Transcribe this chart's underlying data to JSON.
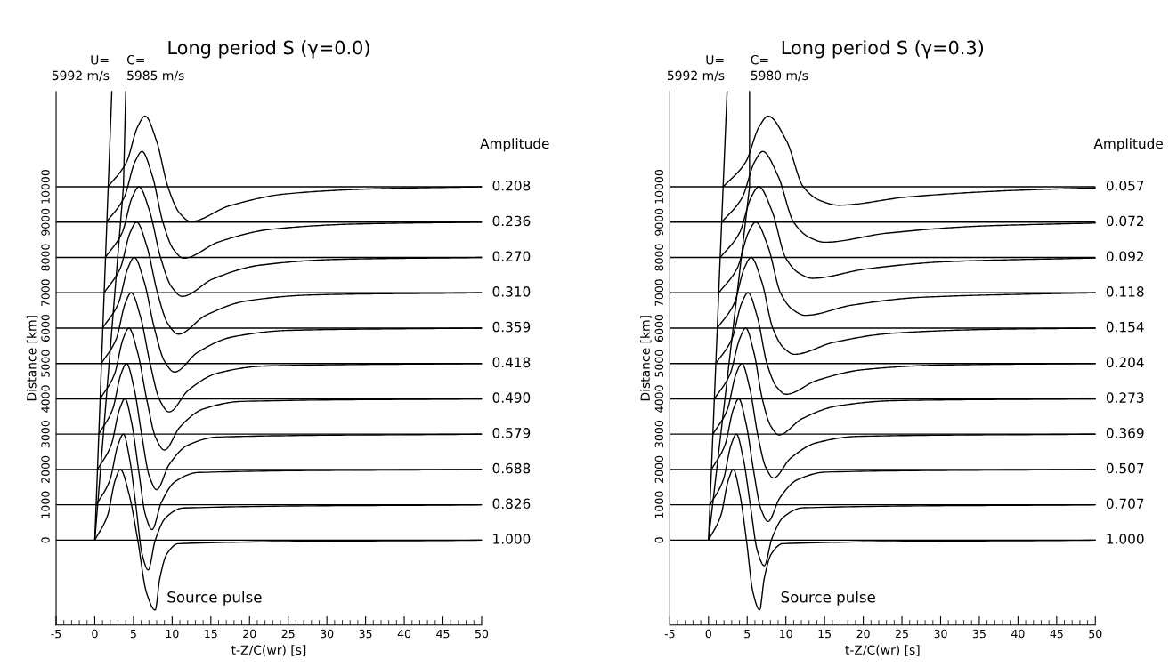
{
  "chart_data": [
    {
      "type": "line",
      "title": "Long period S (γ=0.0)",
      "xlabel": "t-Z/C(wr) [s]",
      "ylabel": "Distance [km]",
      "xlim": [
        -5,
        50
      ],
      "ylim": [
        -2400,
        12700
      ],
      "xticks": [
        -5,
        {
          "value": -4,
          "label": null
        },
        {
          "value": -3,
          "label": null
        },
        {
          "value": -2,
          "label": null
        },
        {
          "value": -1,
          "label": null
        },
        0,
        {
          "value": 1,
          "label": null
        },
        {
          "value": 2,
          "label": null
        },
        {
          "value": 3,
          "label": null
        },
        {
          "value": 4,
          "label": null
        },
        5,
        {
          "value": 6,
          "label": null
        },
        {
          "value": 7,
          "label": null
        },
        {
          "value": 8,
          "label": null
        },
        {
          "value": 9,
          "label": null
        },
        10,
        {
          "value": 11,
          "label": null
        },
        {
          "value": 12,
          "label": null
        },
        {
          "value": 13,
          "label": null
        },
        {
          "value": 14,
          "label": null
        },
        15,
        {
          "value": 16,
          "label": null
        },
        {
          "value": 17,
          "label": null
        },
        {
          "value": 18,
          "label": null
        },
        {
          "value": 19,
          "label": null
        },
        20,
        {
          "value": 21,
          "label": null
        },
        {
          "value": 22,
          "label": null
        },
        {
          "value": 23,
          "label": null
        },
        {
          "value": 24,
          "label": null
        },
        25,
        {
          "value": 26,
          "label": null
        },
        {
          "value": 27,
          "label": null
        },
        {
          "value": 28,
          "label": null
        },
        {
          "value": 29,
          "label": null
        },
        30,
        {
          "value": 31,
          "label": null
        },
        {
          "value": 32,
          "label": null
        },
        {
          "value": 33,
          "label": null
        },
        {
          "value": 34,
          "label": null
        },
        35,
        {
          "value": 36,
          "label": null
        },
        {
          "value": 37,
          "label": null
        },
        {
          "value": 38,
          "label": null
        },
        {
          "value": 39,
          "label": null
        },
        40,
        {
          "value": 41,
          "label": null
        },
        {
          "value": 42,
          "label": null
        },
        {
          "value": 43,
          "label": null
        },
        {
          "value": 44,
          "label": null
        },
        45,
        {
          "value": 46,
          "label": null
        },
        {
          "value": 47,
          "label": null
        },
        {
          "value": 48,
          "label": null
        },
        {
          "value": 49,
          "label": null
        },
        50
      ],
      "yticks": [
        0,
        1000,
        2000,
        3000,
        4000,
        5000,
        6000,
        7000,
        8000,
        9000,
        10000
      ],
      "series": [
        {
          "color": "#000000",
          "x": [
            0,
            1.65,
            2.64,
            3.3,
            4.43,
            5.55,
            6.68,
            7.8,
            8.4,
            9.3,
            10.8,
            50
          ],
          "values": [
            0,
            700,
            1700,
            2000,
            1300,
            0,
            -1481,
            -1975,
            -1086,
            -395,
            -99,
            0
          ]
        },
        {
          "color": "#000000",
          "x": [
            0.2,
            1.95,
            3.0,
            3.7,
            4.5,
            5.3,
            6.1,
            6.9,
            7.8,
            9.15,
            11.4,
            50
          ],
          "values": [
            1000,
            1700,
            2700,
            3000,
            2300,
            1000,
            -380,
            -840,
            -12,
            632,
            908,
            1000
          ]
        },
        {
          "color": "#000000",
          "x": [
            0.35,
            2.13,
            3.19,
            3.9,
            4.78,
            5.65,
            6.53,
            7.4,
            8.6,
            10.4,
            13.4,
            50
          ],
          "values": [
            2000,
            2700,
            3700,
            4000,
            3300,
            2000,
            725,
            300,
            1065,
            1660,
            1915,
            2000
          ]
        },
        {
          "color": "#000000",
          "x": [
            0.5,
            2.3,
            3.38,
            4.1,
            5.08,
            6.05,
            7.03,
            8.0,
            9.6,
            12.0,
            16.0,
            50
          ],
          "values": [
            3000,
            3700,
            4700,
            5000,
            4300,
            3000,
            1822,
            1430,
            2136,
            2686,
            2921,
            3000
          ]
        },
        {
          "color": "#000000",
          "x": [
            0.7,
            2.55,
            3.66,
            4.4,
            5.55,
            6.7,
            7.85,
            9.0,
            11,
            14,
            19,
            50
          ],
          "values": [
            4000,
            4700,
            5700,
            6000,
            5300,
            4000,
            2912,
            2550,
            3202,
            3710,
            3927,
            4000
          ]
        },
        {
          "color": "#000000",
          "x": [
            0.85,
            2.78,
            3.93,
            4.7,
            5.93,
            7.15,
            8.38,
            9.6,
            12.1,
            15.85,
            22.1,
            50
          ],
          "values": [
            5000,
            5700,
            6700,
            7000,
            6300,
            5000,
            3972,
            3630,
            4246,
            4726,
            4931,
            5000
          ]
        },
        {
          "color": "#000000",
          "x": [
            1.0,
            3.05,
            4.28,
            5.1,
            6.4,
            7.7,
            9.0,
            10.3,
            13.3,
            17.8,
            25.3,
            50
          ],
          "values": [
            6000,
            6700,
            7700,
            8000,
            7300,
            6000,
            5070,
            4760,
            5318,
            5752,
            5938,
            6000
          ]
        },
        {
          "color": "#000000",
          "x": [
            1.2,
            3.3,
            4.56,
            5.4,
            6.75,
            8.1,
            9.45,
            10.8,
            14.3,
            19.55,
            28.3,
            50
          ],
          "values": [
            7000,
            7700,
            8700,
            9000,
            8300,
            7000,
            6122,
            5830,
            6356,
            6766,
            6941,
            7000
          ]
        },
        {
          "color": "#000000",
          "x": [
            1.35,
            3.53,
            4.83,
            5.7,
            7.1,
            8.5,
            9.9,
            11.3,
            15.3,
            21.3,
            31.3,
            50
          ],
          "values": [
            8000,
            8700,
            9700,
            10000,
            9300,
            8000,
            7175,
            6900,
            7395,
            7780,
            7945,
            8000
          ]
        },
        {
          "color": "#000000",
          "x": [
            1.5,
            3.8,
            5.18,
            6.1,
            7.45,
            8.8,
            10.15,
            11.5,
            16.0,
            22.75,
            34.0,
            50
          ],
          "values": [
            9000,
            9700,
            10700,
            11000,
            10300,
            9000,
            8235,
            7980,
            8439,
            8796,
            8949,
            9000
          ]
        },
        {
          "color": "#000000",
          "x": [
            1.7,
            4.1,
            5.54,
            6.5,
            7.98,
            9.45,
            10.93,
            12.4,
            17.4,
            24.9,
            37.4,
            50
          ],
          "values": [
            10000,
            10700,
            11700,
            12000,
            11300,
            10000,
            9265,
            9020,
            9461,
            9804,
            9951,
            10000
          ]
        },
        {
          "name": "U=\n5992 m/s",
          "color": "#000000",
          "x": [
            0,
            2.2
          ],
          "values": [
            0,
            12700
          ]
        },
        {
          "name": "C=\n5985 m/s",
          "color": "#000000",
          "x": [
            0,
            3.7,
            4.0
          ],
          "values": [
            0,
            10000,
            12700
          ]
        }
      ],
      "ref_lines": [
        {
          "axis": "y",
          "value": 10000
        },
        {
          "axis": "y",
          "value": 9000
        },
        {
          "axis": "y",
          "value": 8000
        },
        {
          "axis": "y",
          "value": 7000
        },
        {
          "axis": "y",
          "value": 6000
        },
        {
          "axis": "y",
          "value": 5000
        },
        {
          "axis": "y",
          "value": 4000
        },
        {
          "axis": "y",
          "value": 3000
        },
        {
          "axis": "y",
          "value": 2000
        },
        {
          "axis": "y",
          "value": 1000
        },
        {
          "axis": "y",
          "value": 0
        }
      ],
      "annotations": [
        "Amplitude",
        "0.208",
        "0.236",
        "0.270",
        "0.310",
        "0.359",
        "0.418",
        "0.490",
        "0.579",
        "0.688",
        "0.826",
        "1.000",
        "Source pulse"
      ]
    },
    {
      "type": "line",
      "title": "Long period S (γ=0.3)",
      "xlabel": "t-Z/C(wr) [s]",
      "ylabel": "Distance [km]",
      "xlim": [
        -5,
        50
      ],
      "ylim": [
        -2400,
        12700
      ],
      "xticks": [
        -5,
        {
          "value": -4,
          "label": null
        },
        {
          "value": -3,
          "label": null
        },
        {
          "value": -2,
          "label": null
        },
        {
          "value": -1,
          "label": null
        },
        0,
        {
          "value": 1,
          "label": null
        },
        {
          "value": 2,
          "label": null
        },
        {
          "value": 3,
          "label": null
        },
        {
          "value": 4,
          "label": null
        },
        5,
        {
          "value": 6,
          "label": null
        },
        {
          "value": 7,
          "label": null
        },
        {
          "value": 8,
          "label": null
        },
        {
          "value": 9,
          "label": null
        },
        10,
        {
          "value": 11,
          "label": null
        },
        {
          "value": 12,
          "label": null
        },
        {
          "value": 13,
          "label": null
        },
        {
          "value": 14,
          "label": null
        },
        15,
        {
          "value": 16,
          "label": null
        },
        {
          "value": 17,
          "label": null
        },
        {
          "value": 18,
          "label": null
        },
        {
          "value": 19,
          "label": null
        },
        20,
        {
          "value": 21,
          "label": null
        },
        {
          "value": 22,
          "label": null
        },
        {
          "value": 23,
          "label": null
        },
        {
          "value": 24,
          "label": null
        },
        25,
        {
          "value": 26,
          "label": null
        },
        {
          "value": 27,
          "label": null
        },
        {
          "value": 28,
          "label": null
        },
        {
          "value": 29,
          "label": null
        },
        30,
        {
          "value": 31,
          "label": null
        },
        {
          "value": 32,
          "label": null
        },
        {
          "value": 33,
          "label": null
        },
        {
          "value": 34,
          "label": null
        },
        35,
        {
          "value": 36,
          "label": null
        },
        {
          "value": 37,
          "label": null
        },
        {
          "value": 38,
          "label": null
        },
        {
          "value": 39,
          "label": null
        },
        40,
        {
          "value": 41,
          "label": null
        },
        {
          "value": 42,
          "label": null
        },
        {
          "value": 43,
          "label": null
        },
        {
          "value": 44,
          "label": null
        },
        45,
        {
          "value": 46,
          "label": null
        },
        {
          "value": 47,
          "label": null
        },
        {
          "value": 48,
          "label": null
        },
        {
          "value": 49,
          "label": null
        },
        50
      ],
      "yticks": [
        0,
        1000,
        2000,
        3000,
        4000,
        5000,
        6000,
        7000,
        8000,
        9000,
        10000
      ],
      "series": [
        {
          "color": "#000000",
          "x": [
            0,
            1.6,
            2.56,
            3.2,
            4.05,
            4.9,
            5.75,
            6.6,
            7.2,
            8.1,
            9.6,
            50
          ],
          "values": [
            0,
            700,
            1700,
            2000,
            1300,
            0,
            -1478,
            -1970,
            -1084,
            -394,
            -99,
            0
          ]
        },
        {
          "color": "#000000",
          "x": [
            0.19,
            1.9,
            2.92,
            3.6,
            4.5,
            5.4,
            6.3,
            7.2,
            8.2,
            9.7,
            12.2,
            50
          ],
          "values": [
            1000,
            1700,
            2700,
            3000,
            2300,
            1000,
            -290,
            -720,
            54,
            656,
            914,
            1000
          ]
        },
        {
          "color": "#000000",
          "x": [
            0.38,
            2.14,
            3.2,
            3.9,
            4.85,
            5.8,
            6.75,
            7.7,
            9.2,
            11.45,
            15.2,
            50
          ],
          "values": [
            2000,
            2700,
            3700,
            4000,
            3300,
            2000,
            897,
            530,
            1191,
            1706,
            1926,
            2000
          ]
        },
        {
          "color": "#000000",
          "x": [
            0.57,
            2.44,
            3.55,
            4.3,
            5.33,
            6.35,
            7.38,
            8.4,
            10.6,
            13.9,
            19.4,
            50
          ],
          "values": [
            3000,
            3700,
            4700,
            5000,
            4300,
            3000,
            2070,
            1760,
            2318,
            2752,
            2938,
            3000
          ]
        },
        {
          "color": "#000000",
          "x": [
            0.76,
            2.78,
            4.03,
            4.8,
            5.88,
            6.95,
            8.03,
            9.1,
            12.1,
            16.6,
            24.1,
            50
          ],
          "values": [
            4000,
            4700,
            5700,
            6000,
            5300,
            4000,
            3235,
            2980,
            3439,
            3796,
            3949,
            4000
          ]
        },
        {
          "color": "#000000",
          "x": [
            0.95,
            3.03,
            4.27,
            5.1,
            6.33,
            7.55,
            8.78,
            10.0,
            14,
            20,
            30,
            50
          ],
          "values": [
            5000,
            5700,
            6700,
            7000,
            6300,
            5000,
            4347,
            4130,
            4521,
            4826,
            4956,
            5000
          ]
        },
        {
          "color": "#000000",
          "x": [
            1.14,
            3.32,
            4.63,
            5.5,
            6.9,
            8.3,
            9.7,
            11.1,
            16.1,
            23.6,
            36.1,
            50
          ],
          "values": [
            6000,
            6700,
            7700,
            8000,
            7300,
            6000,
            5445,
            5260,
            5593,
            5852,
            5963,
            6000
          ]
        },
        {
          "color": "#000000",
          "x": [
            1.33,
            3.72,
            5.15,
            6.1,
            7.7,
            9.3,
            10.9,
            12.5,
            18.5,
            27.5,
            42.5,
            50
          ],
          "values": [
            7000,
            7700,
            8700,
            9000,
            8300,
            7000,
            6520,
            6360,
            6648,
            6872,
            6968,
            7000
          ]
        },
        {
          "color": "#000000",
          "x": [
            1.52,
            4.01,
            5.5,
            6.5,
            8.23,
            9.95,
            11.68,
            13.4,
            20.4,
            30.9,
            50
          ],
          "values": [
            8000,
            8700,
            9700,
            10000,
            9300,
            8000,
            7557,
            7410,
            7675,
            7882,
            7985
          ]
        },
        {
          "color": "#000000",
          "x": [
            1.71,
            4.36,
            5.94,
            7.0,
            9,
            11,
            13,
            15.0,
            23,
            35,
            50
          ],
          "values": [
            9000,
            9700,
            10700,
            11000,
            10300,
            9000,
            8572,
            8430,
            8686,
            8886,
            8975
          ]
        },
        {
          "color": "#000000",
          "x": [
            1.9,
            4.8,
            6.54,
            7.7,
            10.08,
            12.25,
            14.43,
            16.8,
            25.8,
            39.3,
            50
          ],
          "values": [
            10000,
            10700,
            11700,
            12000,
            11300,
            10000,
            9610,
            9480,
            9714,
            9896,
            9970
          ]
        },
        {
          "name": "U=\n5992 m/s",
          "color": "#000000",
          "x": [
            0,
            2.4
          ],
          "values": [
            0,
            12700
          ]
        },
        {
          "name": "C=\n5980 m/s",
          "color": "#000000",
          "x": [
            0,
            5.3,
            5.3
          ],
          "values": [
            0,
            10000,
            12700
          ]
        }
      ],
      "ref_lines": [
        {
          "axis": "y",
          "value": 10000
        },
        {
          "axis": "y",
          "value": 9000
        },
        {
          "axis": "y",
          "value": 8000
        },
        {
          "axis": "y",
          "value": 7000
        },
        {
          "axis": "y",
          "value": 6000
        },
        {
          "axis": "y",
          "value": 5000
        },
        {
          "axis": "y",
          "value": 4000
        },
        {
          "axis": "y",
          "value": 3000
        },
        {
          "axis": "y",
          "value": 2000
        },
        {
          "axis": "y",
          "value": 1000
        },
        {
          "axis": "y",
          "value": 0
        }
      ],
      "annotations": [
        "Amplitude",
        "0.057",
        "0.072",
        "0.092",
        "0.118",
        "0.154",
        "0.204",
        "0.273",
        "0.369",
        "0.507",
        "0.707",
        "1.000",
        "Source pulse"
      ]
    }
  ]
}
